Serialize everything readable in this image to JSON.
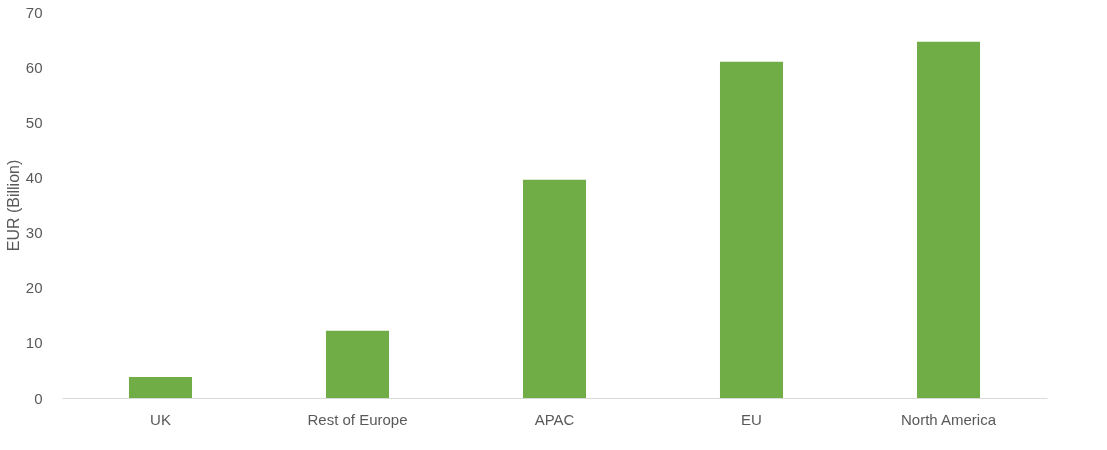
{
  "chart_data": {
    "type": "bar",
    "ylabel": "EUR (Billion)",
    "categories": [
      "UK",
      "Rest of Europe",
      "APAC",
      "EU",
      "North America"
    ],
    "series": [
      {
        "color": "#70ad47",
        "values": [
          3.8,
          12.2,
          39.6,
          61.0,
          64.6
        ]
      }
    ],
    "ylim": [
      0,
      70
    ],
    "yticks": [
      0,
      10,
      20,
      30,
      40,
      50,
      60,
      70
    ],
    "grid": false,
    "legend": false
  }
}
